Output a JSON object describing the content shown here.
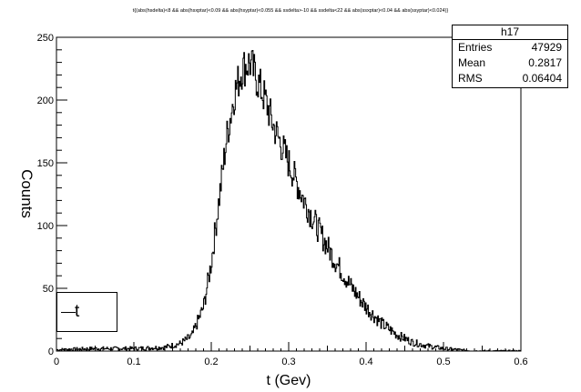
{
  "chart_data": {
    "type": "histogram",
    "title": "t{(abs(hsdelta)<8 && abs(hsxptar)<0.09 && abs(hsyptar)<0.055 && ssdelta>-10 && ssdelta<22 && abs(ssxptar)<0.04 && abs(ssyptar)<0.024)}",
    "xlabel": "t (Gev)",
    "ylabel": "Counts",
    "xlim": [
      0,
      0.6
    ],
    "ylim": [
      0,
      250
    ],
    "xticks": [
      "0",
      "0.1",
      "0.2",
      "0.3",
      "0.4",
      "0.5",
      "0.6"
    ],
    "yticks": [
      "0",
      "50",
      "100",
      "150",
      "200",
      "250"
    ],
    "legend": [
      "t"
    ],
    "legend_position": "bottom-left",
    "line_color": "#000000",
    "stats": {
      "name": "h17",
      "rows": [
        {
          "label": "Entries",
          "value": "47929"
        },
        {
          "label": "Mean",
          "value": "0.2817"
        },
        {
          "label": "RMS",
          "value": "0.06404"
        }
      ]
    },
    "profile": [
      [
        0.0,
        1
      ],
      [
        0.05,
        2
      ],
      [
        0.1,
        2
      ],
      [
        0.14,
        3
      ],
      [
        0.16,
        6
      ],
      [
        0.175,
        12
      ],
      [
        0.19,
        35
      ],
      [
        0.2,
        70
      ],
      [
        0.21,
        120
      ],
      [
        0.22,
        170
      ],
      [
        0.23,
        205
      ],
      [
        0.24,
        225
      ],
      [
        0.25,
        230
      ],
      [
        0.26,
        215
      ],
      [
        0.27,
        200
      ],
      [
        0.28,
        180
      ],
      [
        0.3,
        150
      ],
      [
        0.32,
        120
      ],
      [
        0.34,
        95
      ],
      [
        0.36,
        72
      ],
      [
        0.38,
        52
      ],
      [
        0.4,
        35
      ],
      [
        0.42,
        22
      ],
      [
        0.44,
        13
      ],
      [
        0.46,
        7
      ],
      [
        0.48,
        4
      ],
      [
        0.5,
        2
      ],
      [
        0.52,
        1
      ],
      [
        0.54,
        0
      ],
      [
        0.6,
        0
      ]
    ],
    "bin_width": 0.001
  }
}
